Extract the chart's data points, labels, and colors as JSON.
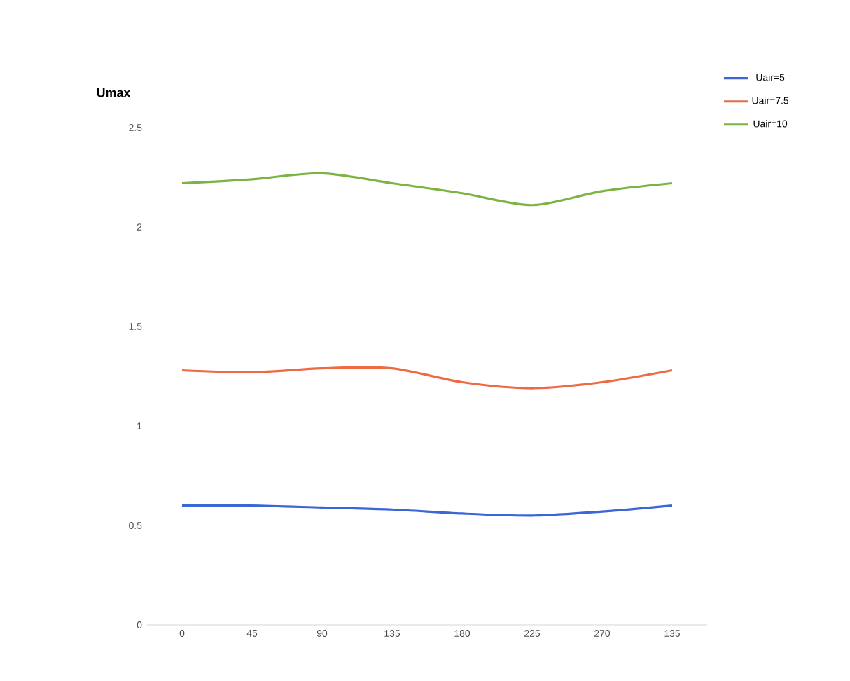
{
  "chart_data": {
    "type": "line",
    "ylabel": "Umax",
    "categories": [
      "0",
      "45",
      "90",
      "135",
      "180",
      "225",
      "270",
      "135"
    ],
    "series": [
      {
        "name": "Uair=5",
        "color": "#3a66d8",
        "values": [
          0.6,
          0.6,
          0.59,
          0.58,
          0.56,
          0.55,
          0.57,
          0.6
        ]
      },
      {
        "name": "Uair=7.5",
        "color": "#ee6a45",
        "values": [
          1.28,
          1.27,
          1.29,
          1.29,
          1.22,
          1.19,
          1.22,
          1.28
        ]
      },
      {
        "name": "Uair=10",
        "color": "#7cb342",
        "values": [
          2.22,
          2.24,
          2.27,
          2.22,
          2.17,
          2.11,
          2.18,
          2.22
        ]
      }
    ],
    "ylim": [
      0,
      2.5
    ],
    "yticks": [
      0,
      0.5,
      1,
      1.5,
      2,
      2.5
    ],
    "legend": "top right",
    "grid": false,
    "marker": "none",
    "line_style": "solid"
  }
}
